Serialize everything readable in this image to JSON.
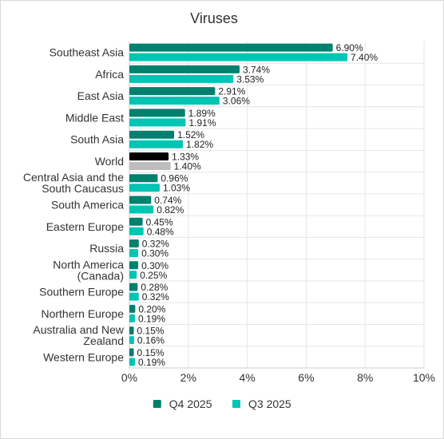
{
  "chart_data": {
    "type": "bar",
    "orientation": "horizontal",
    "title": "Viruses",
    "categories": [
      "Southeast Asia",
      "Africa",
      "East Asia",
      "Middle East",
      "South Asia",
      "World",
      "Central Asia and the South Caucasus",
      "South America",
      "Eastern Europe",
      "Russia",
      "North America (Canada)",
      "Southern Europe",
      "Northern Europe",
      "Australia and New Zealand",
      "Western Europe"
    ],
    "category_lines": [
      [
        "Southeast Asia"
      ],
      [
        "Africa"
      ],
      [
        "East Asia"
      ],
      [
        "Middle East"
      ],
      [
        "South Asia"
      ],
      [
        "World"
      ],
      [
        "Central Asia and the",
        "South Caucasus"
      ],
      [
        "South America"
      ],
      [
        "Eastern Europe"
      ],
      [
        "Russia"
      ],
      [
        "North America",
        "(Canada)"
      ],
      [
        "Southern Europe"
      ],
      [
        "Northern Europe"
      ],
      [
        "Australia and New",
        "Zealand"
      ],
      [
        "Western Europe"
      ]
    ],
    "series": [
      {
        "name": "Q4 2025",
        "color": "#00806e",
        "values": [
          6.9,
          3.74,
          2.91,
          1.89,
          1.52,
          1.33,
          0.96,
          0.74,
          0.45,
          0.32,
          0.3,
          0.28,
          0.2,
          0.15,
          0.15
        ]
      },
      {
        "name": "Q3 2025",
        "color": "#00c4b4",
        "values": [
          7.4,
          3.53,
          3.06,
          1.91,
          1.82,
          1.4,
          1.03,
          0.82,
          0.48,
          0.3,
          0.25,
          0.32,
          0.19,
          0.16,
          0.19
        ]
      }
    ],
    "highlight": {
      "category": "World",
      "colors": [
        "#000000",
        "#bdbdbd"
      ]
    },
    "value_suffix": "%",
    "xlim": [
      0,
      10
    ],
    "xticks": [
      0,
      2,
      4,
      6,
      8,
      10
    ],
    "xtick_labels": [
      "0%",
      "2%",
      "4%",
      "6%",
      "8%",
      "10%"
    ],
    "grid": true,
    "legend_position": "bottom"
  }
}
